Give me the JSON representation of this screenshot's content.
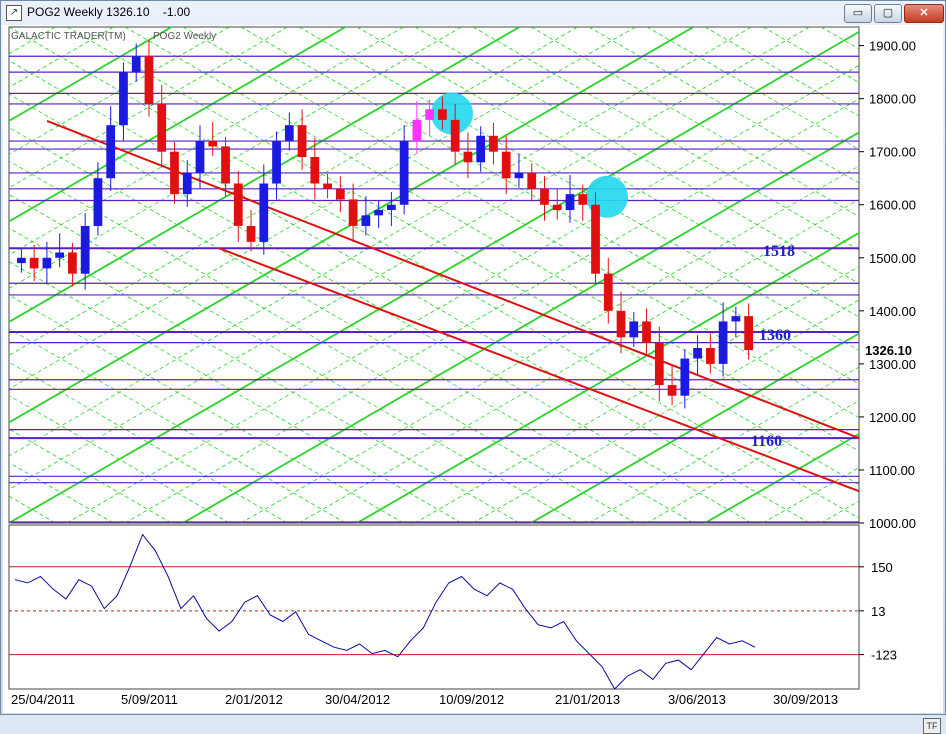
{
  "window": {
    "title": "POG2 Weekly 1326.10",
    "change": "-1.00",
    "buttons": {
      "minimize": "▭",
      "restore": "▢",
      "close": "✕"
    }
  },
  "chart_labels": {
    "provider": "GALACTIC TRADER(TM)",
    "symbol": "POG2 Weekly",
    "last_price": "1326.10",
    "tf_badge": "TF"
  },
  "colors": {
    "up_candle": "#1a1ae0",
    "down_candle": "#e01010",
    "highlight_candle": "#ff33ff",
    "grid_green": "#28d428",
    "horizontal_lines": "#5a1ec8",
    "trendline": "#e01010",
    "circle": "#22d8f0",
    "oscillator": "#0a0aa0",
    "osc_levels": "#c02020"
  },
  "chart_data": [
    {
      "type": "candlestick",
      "title": "POG2 Weekly",
      "x_labels": [
        "25/04/2011",
        "5/09/2011",
        "2/01/2012",
        "30/04/2012",
        "10/09/2012",
        "21/01/2013",
        "3/06/2013",
        "30/09/2013"
      ],
      "y_ticks": [
        "1900.00",
        "1800.00",
        "1700.00",
        "1600.00",
        "1500.00",
        "1400.00",
        "1300.00",
        "1200.00",
        "1100.00",
        "1000.00"
      ],
      "ylim": [
        1000,
        1920
      ],
      "annotations": [
        "1518",
        "1360",
        "1160"
      ],
      "close_path": [
        1500,
        1480,
        1500,
        1510,
        1470,
        1560,
        1650,
        1750,
        1850,
        1880,
        1790,
        1700,
        1620,
        1660,
        1720,
        1710,
        1640,
        1560,
        1530,
        1640,
        1720,
        1750,
        1690,
        1640,
        1630,
        1610,
        1560,
        1580,
        1590,
        1600,
        1720,
        1760,
        1780,
        1760,
        1700,
        1680,
        1730,
        1700,
        1650,
        1660,
        1630,
        1600,
        1590,
        1620,
        1600,
        1470,
        1400,
        1350,
        1380,
        1340,
        1260,
        1240,
        1310,
        1330,
        1300,
        1380,
        1390,
        1326
      ]
    },
    {
      "type": "line",
      "title": "",
      "y_ticks": [
        "150",
        "13",
        "-123"
      ],
      "levels": [
        150,
        13,
        -123
      ],
      "ylim": [
        -230,
        280
      ],
      "values": [
        110,
        100,
        120,
        80,
        50,
        110,
        90,
        20,
        60,
        150,
        250,
        200,
        120,
        20,
        60,
        -10,
        -50,
        -20,
        40,
        60,
        0,
        -20,
        10,
        -60,
        -80,
        -100,
        -110,
        -90,
        -120,
        -110,
        -130,
        -80,
        -40,
        40,
        100,
        120,
        80,
        60,
        100,
        80,
        20,
        -30,
        -40,
        -20,
        -80,
        -120,
        -160,
        -230,
        -190,
        -170,
        -200,
        -150,
        -140,
        -170,
        -120,
        -70,
        -90,
        -80,
        -100
      ]
    }
  ]
}
